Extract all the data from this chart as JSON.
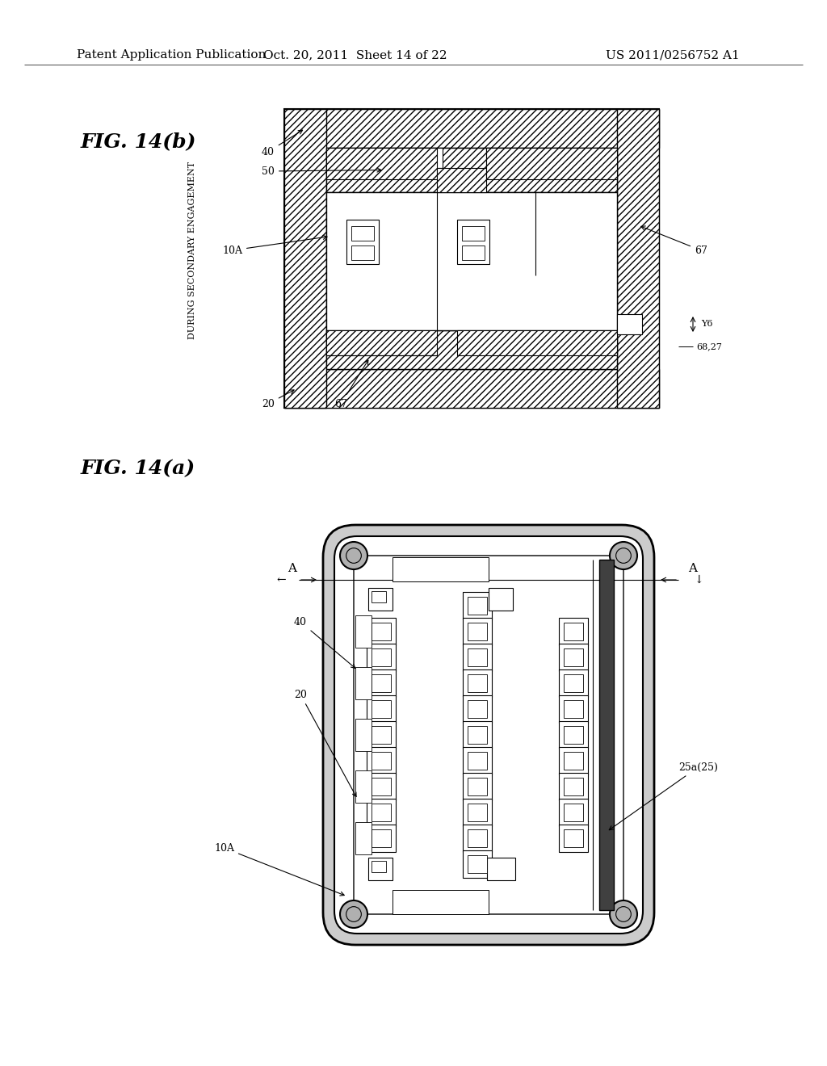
{
  "bg_color": "#ffffff",
  "header_left": "Patent Application Publication",
  "header_mid": "Oct. 20, 2011  Sheet 14 of 22",
  "header_right": "US 2011/0256752 A1",
  "fig_b_label": "FIG. 14(b)",
  "fig_a_label": "FIG. 14(a)",
  "vertical_text": "DURING SECONDARY ENGAGEMENT"
}
